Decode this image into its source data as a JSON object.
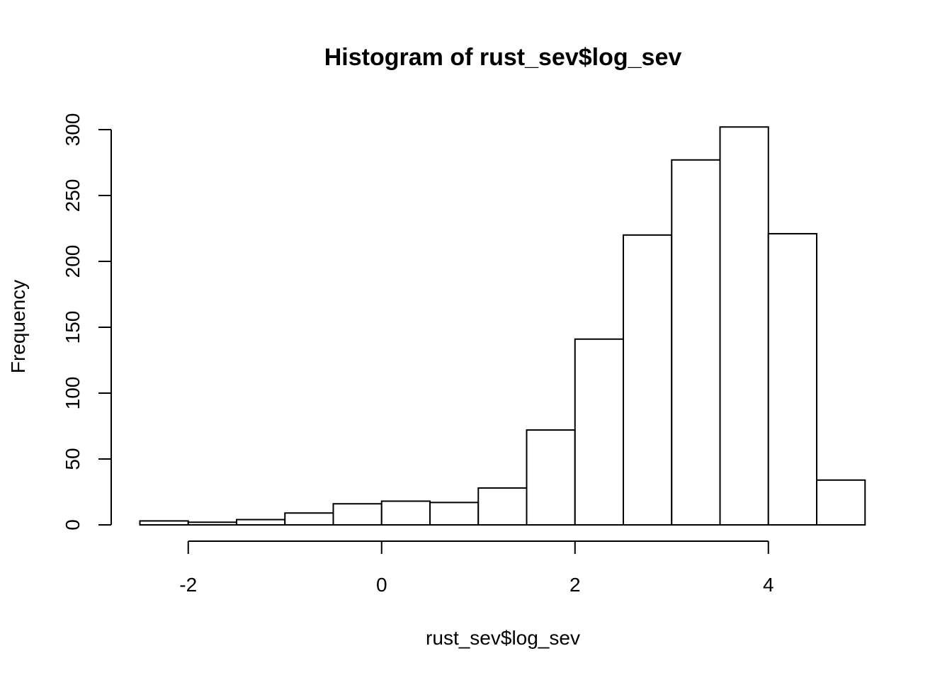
{
  "chart_data": {
    "type": "bar",
    "title": "Histogram of rust_sev$log_sev",
    "xlabel": "rust_sev$log_sev",
    "ylabel": "Frequency",
    "bins": [
      {
        "from": -2.5,
        "to": -2.0,
        "count": 3
      },
      {
        "from": -2.0,
        "to": -1.5,
        "count": 2
      },
      {
        "from": -1.5,
        "to": -1.0,
        "count": 4
      },
      {
        "from": -1.0,
        "to": -0.5,
        "count": 9
      },
      {
        "from": -0.5,
        "to": 0.0,
        "count": 16
      },
      {
        "from": 0.0,
        "to": 0.5,
        "count": 18
      },
      {
        "from": 0.5,
        "to": 1.0,
        "count": 17
      },
      {
        "from": 1.0,
        "to": 1.5,
        "count": 28
      },
      {
        "from": 1.5,
        "to": 2.0,
        "count": 72
      },
      {
        "from": 2.0,
        "to": 2.5,
        "count": 141
      },
      {
        "from": 2.5,
        "to": 3.0,
        "count": 220
      },
      {
        "from": 3.0,
        "to": 3.5,
        "count": 277
      },
      {
        "from": 3.5,
        "to": 4.0,
        "count": 302
      },
      {
        "from": 4.0,
        "to": 4.5,
        "count": 221
      },
      {
        "from": 4.5,
        "to": 5.0,
        "count": 34
      }
    ],
    "x_ticks": [
      -2,
      0,
      2,
      4
    ],
    "x_tick_labels": [
      "-2",
      "0",
      "2",
      "4"
    ],
    "y_ticks": [
      0,
      50,
      100,
      150,
      200,
      250,
      300
    ],
    "y_tick_labels": [
      "0",
      "50",
      "100",
      "150",
      "200",
      "250",
      "300"
    ],
    "xlim": [
      -2.5,
      5.0
    ],
    "ylim": [
      0,
      300
    ],
    "grid": false
  }
}
